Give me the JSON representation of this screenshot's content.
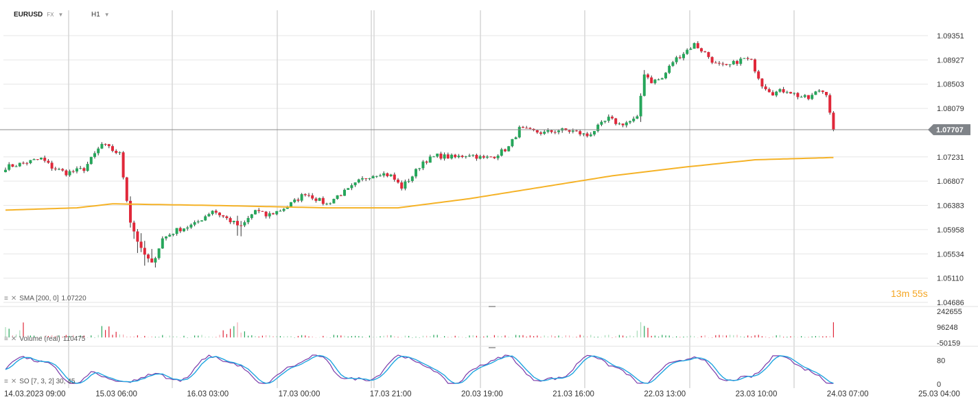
{
  "header": {
    "symbol": "EURUSD",
    "market": "FX",
    "interval": "H1"
  },
  "timer": "13m 55s",
  "colors": {
    "up": "#26a65b",
    "down": "#e0283a",
    "sma": "#f5b226",
    "so_k": "#7b3aa8",
    "so_d": "#1ea5e0",
    "price_tag": "#7f8388",
    "grid": "#e6e6e6"
  },
  "icons": {
    "indicator_menu": "menu-icon",
    "indicator_close": "close-icon",
    "dropdown": "chevron-down-icon"
  },
  "chart_data": [
    {
      "type": "candlestick",
      "y_ticks": [
        "1.09351",
        "1.08927",
        "1.08503",
        "1.08079",
        "1.07231",
        "1.06807",
        "1.06383",
        "1.05958",
        "1.05534",
        "1.05110",
        "1.04686"
      ],
      "ylim": [
        1.04686,
        1.09351
      ],
      "last_price": "1.07707",
      "x_ticks": [
        "14.03.2023  09:00",
        "15.03  06:00",
        "16.03  03:00",
        "17.03  00:00",
        "17.03  21:00",
        "20.03  19:00",
        "21.03  16:00",
        "22.03  13:00",
        "23.03  10:00",
        "24.03  07:00",
        "25.03  04:00"
      ],
      "price_path": [
        [
          0,
          1.0705
        ],
        [
          5,
          1.0712
        ],
        [
          10,
          1.072
        ],
        [
          13,
          1.0705
        ],
        [
          17,
          1.0695
        ],
        [
          22,
          1.0702
        ],
        [
          27,
          1.0745
        ],
        [
          32,
          1.0728
        ],
        [
          35,
          1.061
        ],
        [
          38,
          1.056
        ],
        [
          41,
          1.0535
        ],
        [
          44,
          1.058
        ],
        [
          48,
          1.0595
        ],
        [
          53,
          1.0605
        ],
        [
          58,
          1.063
        ],
        [
          62,
          1.0615
        ],
        [
          66,
          1.06
        ],
        [
          70,
          1.063
        ],
        [
          73,
          1.062
        ],
        [
          77,
          1.063
        ],
        [
          81,
          1.0645
        ],
        [
          84,
          1.066
        ],
        [
          87,
          1.065
        ],
        [
          90,
          1.064
        ],
        [
          93,
          1.0655
        ],
        [
          96,
          1.0665
        ],
        [
          99,
          1.068
        ],
        [
          102,
          1.069
        ],
        [
          105,
          1.0695
        ],
        [
          108,
          1.069
        ],
        [
          111,
          1.067
        ],
        [
          114,
          1.069
        ],
        [
          117,
          1.0715
        ],
        [
          121,
          1.0725
        ],
        [
          126,
          1.0722
        ],
        [
          130,
          1.0728
        ],
        [
          134,
          1.072
        ],
        [
          137,
          1.0725
        ],
        [
          141,
          1.074
        ],
        [
          144,
          1.0772
        ],
        [
          147,
          1.0768
        ],
        [
          151,
          1.0765
        ],
        [
          155,
          1.077
        ],
        [
          159,
          1.0768
        ],
        [
          163,
          1.076
        ],
        [
          166,
          1.0775
        ],
        [
          169,
          1.079
        ],
        [
          172,
          1.078
        ],
        [
          175,
          1.0785
        ],
        [
          177,
          1.079
        ],
        [
          179,
          1.087
        ],
        [
          181,
          1.0855
        ],
        [
          184,
          1.086
        ],
        [
          187,
          1.089
        ],
        [
          190,
          1.0905
        ],
        [
          193,
          1.092
        ],
        [
          196,
          1.0905
        ],
        [
          199,
          1.0885
        ],
        [
          202,
          1.088
        ],
        [
          205,
          1.089
        ],
        [
          207,
          1.0895
        ],
        [
          209,
          1.089
        ],
        [
          212,
          1.085
        ],
        [
          215,
          1.0835
        ],
        [
          219,
          1.084
        ],
        [
          222,
          1.083
        ],
        [
          225,
          1.0825
        ],
        [
          228,
          1.084
        ],
        [
          230,
          1.0835
        ],
        [
          232,
          1.07707
        ]
      ],
      "volatile_bars": [
        35,
        36,
        37,
        38,
        39,
        40,
        41,
        42,
        65,
        66,
        178,
        179
      ]
    },
    {
      "type": "line",
      "name": "SMA [200, 0]",
      "label_value": "1.07220",
      "path": [
        [
          0,
          1.063
        ],
        [
          20,
          1.0634
        ],
        [
          30,
          1.0641
        ],
        [
          60,
          1.0638
        ],
        [
          90,
          1.0634
        ],
        [
          110,
          1.0634
        ],
        [
          130,
          1.065
        ],
        [
          150,
          1.067
        ],
        [
          170,
          1.069
        ],
        [
          190,
          1.0705
        ],
        [
          210,
          1.0718
        ],
        [
          232,
          1.0722
        ]
      ]
    },
    {
      "type": "bar",
      "name": "Volume (real)",
      "label_value": "110475",
      "y_ticks": [
        "242655",
        "96248",
        "-50159"
      ],
      "ylim": [
        -50159,
        242655
      ]
    },
    {
      "type": "line",
      "name": "SO [7, 3, 2] 30, 45",
      "y_ticks": [
        "80",
        "0"
      ],
      "ylim": [
        0,
        100
      ]
    }
  ]
}
